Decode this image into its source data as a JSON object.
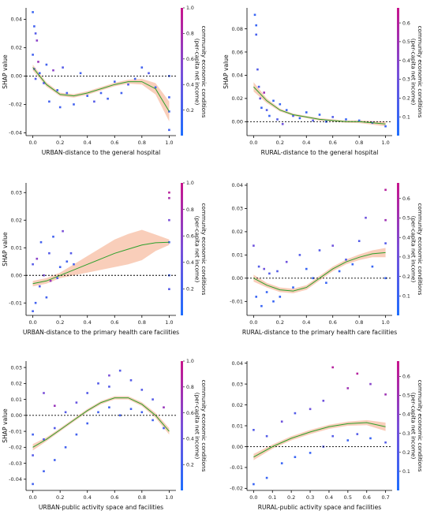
{
  "colorbar_label": "community economic conditions\n(per-capita net income)",
  "colors": {
    "low": "#1e6eff",
    "mid": "#7a4fd8",
    "high": "#c8148c",
    "fit": "#2ca02c",
    "band": "#f4a582",
    "zero": "#000000"
  },
  "chart_data": [
    {
      "type": "scatter",
      "title": "",
      "xlabel": "URBAN-distance to the general hospital",
      "ylabel": "SHAP value",
      "xlim": [
        -0.05,
        1.05
      ],
      "ylim": [
        -0.042,
        0.048
      ],
      "xticks": [
        "0.0",
        "0.2",
        "0.4",
        "0.6",
        "0.8",
        "1.0"
      ],
      "xtick_values": [
        0,
        0.2,
        0.4,
        0.6,
        0.8,
        1.0
      ],
      "yticks": [
        "-0.04",
        "-0.02",
        "0.00",
        "0.02",
        "0.04"
      ],
      "ytick_values": [
        -0.04,
        -0.02,
        0,
        0.02,
        0.04
      ],
      "fit_x": [
        0,
        0.1,
        0.2,
        0.3,
        0.4,
        0.5,
        0.6,
        0.7,
        0.8,
        0.9,
        1.0
      ],
      "fit_y": [
        0.006,
        -0.006,
        -0.013,
        -0.014,
        -0.012,
        -0.009,
        -0.006,
        -0.004,
        -0.004,
        -0.009,
        -0.025
      ],
      "band_half": [
        0.002,
        0.0015,
        0.0012,
        0.0012,
        0.0012,
        0.0012,
        0.0012,
        0.0014,
        0.002,
        0.004,
        0.007
      ],
      "points": {
        "x": [
          0,
          0.01,
          0.02,
          0.03,
          0,
          0.01,
          0.02,
          0.04,
          0.05,
          0.08,
          0.1,
          0.12,
          0.15,
          0.18,
          0.2,
          0.22,
          0.25,
          0.3,
          0.35,
          0.4,
          0.45,
          0.5,
          0.55,
          0.6,
          0.65,
          0.7,
          0.75,
          0.8,
          0.85,
          0.9,
          1.0,
          1.0,
          1.0,
          1.0
        ],
        "y": [
          0.045,
          0.035,
          0.03,
          0.025,
          0.015,
          0.005,
          -0.002,
          0.01,
          0.002,
          -0.005,
          0.008,
          -0.018,
          0.004,
          -0.01,
          -0.022,
          0.006,
          -0.012,
          -0.02,
          0.002,
          -0.014,
          -0.018,
          -0.012,
          -0.016,
          -0.004,
          -0.012,
          -0.006,
          -0.002,
          0.006,
          0.002,
          -0.008,
          -0.025,
          -0.038,
          -0.015,
          0.0
        ],
        "c": [
          0.15,
          0.2,
          0.3,
          0.6,
          0.2,
          0.5,
          0.3,
          0.7,
          0.2,
          0.3,
          0.2,
          0.2,
          0.6,
          0.2,
          0.2,
          0.3,
          0.2,
          0.2,
          0.2,
          0.2,
          0.3,
          0.2,
          0.2,
          0.2,
          0.2,
          0.3,
          0.2,
          0.2,
          0.3,
          0.2,
          0.2,
          0.2,
          0.2,
          0.2
        ]
      },
      "colorbar": {
        "range": [
          0.0,
          1.0
        ],
        "ticks": [
          "0.2",
          "0.4",
          "0.6",
          "0.8",
          "1.0"
        ],
        "tick_values": [
          0.2,
          0.4,
          0.6,
          0.8,
          1.0
        ]
      }
    },
    {
      "type": "scatter",
      "title": "",
      "xlabel": "RURAL-distance to the general hospital",
      "ylabel": "SHAP value",
      "xlim": [
        -0.05,
        1.05
      ],
      "ylim": [
        -0.012,
        0.098
      ],
      "xticks": [
        "0.0",
        "0.2",
        "0.4",
        "0.6",
        "0.8",
        "1.0"
      ],
      "xtick_values": [
        0,
        0.2,
        0.4,
        0.6,
        0.8,
        1.0
      ],
      "yticks": [
        "0.00",
        "0.02",
        "0.04",
        "0.06",
        "0.08"
      ],
      "ytick_values": [
        0,
        0.02,
        0.04,
        0.06,
        0.08
      ],
      "fit_x": [
        0,
        0.1,
        0.2,
        0.3,
        0.4,
        0.5,
        0.6,
        0.7,
        0.8,
        0.9,
        1.0
      ],
      "fit_y": [
        0.03,
        0.018,
        0.01,
        0.006,
        0.004,
        0.002,
        0.001,
        0.0,
        0.0,
        -0.001,
        -0.002
      ],
      "band_half": [
        0.004,
        0.002,
        0.0012,
        0.001,
        0.001,
        0.001,
        0.001,
        0.001,
        0.0012,
        0.0015,
        0.002
      ],
      "points": {
        "x": [
          0.01,
          0.02,
          0.02,
          0.03,
          0.04,
          0.05,
          0.06,
          0.08,
          0.1,
          0.12,
          0.15,
          0.18,
          0.2,
          0.22,
          0.25,
          0.3,
          0.35,
          0.4,
          0.45,
          0.5,
          0.55,
          0.6,
          0.7,
          0.8,
          0.9,
          1.0
        ],
        "y": [
          0.092,
          0.083,
          0.075,
          0.045,
          0.03,
          0.02,
          0.012,
          0.025,
          0.01,
          0.005,
          0.018,
          0.002,
          0.015,
          -0.002,
          0.01,
          0.005,
          0.003,
          0.008,
          0.001,
          0.006,
          0.0,
          0.004,
          0.002,
          0.001,
          -0.001,
          -0.004
        ],
        "c": [
          0.1,
          0.1,
          0.15,
          0.2,
          0.2,
          0.3,
          0.1,
          0.5,
          0.2,
          0.1,
          0.1,
          0.2,
          0.1,
          0.3,
          0.1,
          0.2,
          0.1,
          0.1,
          0.2,
          0.1,
          0.1,
          0.2,
          0.1,
          0.1,
          0.2,
          0.1
        ]
      },
      "colorbar": {
        "range": [
          0.0,
          0.68
        ],
        "ticks": [
          "0.1",
          "0.2",
          "0.3",
          "0.4",
          "0.5",
          "0.6"
        ],
        "tick_values": [
          0.1,
          0.2,
          0.3,
          0.4,
          0.5,
          0.6
        ]
      }
    },
    {
      "type": "scatter",
      "title": "",
      "xlabel": "URBAN-distance to the primary health care facilities",
      "ylabel": "SHAP value",
      "xlim": [
        -0.05,
        1.05
      ],
      "ylim": [
        -0.0145,
        0.0335
      ],
      "xticks": [
        "0.0",
        "0.2",
        "0.4",
        "0.6",
        "0.8",
        "1.0"
      ],
      "xtick_values": [
        0,
        0.2,
        0.4,
        0.6,
        0.8,
        1.0
      ],
      "yticks": [
        "-0.01",
        "0.00",
        "0.01",
        "0.02",
        "0.03"
      ],
      "ytick_values": [
        -0.01,
        0,
        0.01,
        0.02,
        0.03
      ],
      "fit_x": [
        0,
        0.1,
        0.2,
        0.3,
        0.4,
        0.5,
        0.6,
        0.7,
        0.8,
        0.9,
        1.0
      ],
      "fit_y": [
        -0.003,
        -0.002,
        0.0,
        0.002,
        0.004,
        0.006,
        0.008,
        0.0095,
        0.011,
        0.0118,
        0.012
      ],
      "band_half": [
        0.001,
        0.001,
        0.001,
        0.002,
        0.003,
        0.004,
        0.005,
        0.0055,
        0.0055,
        0.003,
        0.001
      ],
      "points": {
        "x": [
          0,
          0,
          0.02,
          0.03,
          0.05,
          0.06,
          0.08,
          0.1,
          0.12,
          0.13,
          0.15,
          0.18,
          0.2,
          0.22,
          0.25,
          0.28,
          0.3,
          1.0,
          1.0,
          1.0,
          1.0,
          1.0,
          1.0
        ],
        "y": [
          -0.013,
          0.004,
          -0.01,
          0.006,
          -0.004,
          0.012,
          0.0,
          -0.008,
          0.008,
          -0.002,
          0.014,
          -0.001,
          0.003,
          0.016,
          0.005,
          0.008,
          0.004,
          0.03,
          0.02,
          0.012,
          0.0,
          -0.005,
          0.028
        ],
        "c": [
          0.2,
          0.3,
          0.2,
          0.6,
          0.3,
          0.2,
          0.5,
          0.2,
          0.3,
          0.7,
          0.2,
          0.3,
          0.2,
          0.5,
          0.2,
          0.3,
          0.2,
          0.9,
          0.5,
          0.2,
          0.2,
          0.3,
          0.8
        ]
      },
      "colorbar": {
        "range": [
          0.0,
          1.0
        ],
        "ticks": [
          "0.2",
          "0.4",
          "0.6",
          "0.8",
          "1.0"
        ],
        "tick_values": [
          0.2,
          0.4,
          0.6,
          0.8,
          1.0
        ]
      }
    },
    {
      "type": "scatter",
      "title": "",
      "xlabel": "RURAL-distance to the primary health care facilities",
      "ylabel": "",
      "xlim": [
        -0.05,
        1.05
      ],
      "ylim": [
        -0.016,
        0.041
      ],
      "xticks": [
        "0.0",
        "0.2",
        "0.4",
        "0.6",
        "0.8",
        "1.0"
      ],
      "xtick_values": [
        0,
        0.2,
        0.4,
        0.6,
        0.8,
        1.0
      ],
      "yticks": [
        "-0.01",
        "0.00",
        "0.01",
        "0.02",
        "0.03",
        "0.04"
      ],
      "ytick_values": [
        -0.01,
        0,
        0.01,
        0.02,
        0.03,
        0.04
      ],
      "fit_x": [
        0,
        0.1,
        0.2,
        0.3,
        0.4,
        0.5,
        0.6,
        0.7,
        0.8,
        0.9,
        1.0
      ],
      "fit_y": [
        0.0,
        -0.003,
        -0.005,
        -0.0055,
        -0.004,
        0.0,
        0.004,
        0.007,
        0.009,
        0.0105,
        0.011
      ],
      "band_half": [
        0.0015,
        0.001,
        0.001,
        0.001,
        0.001,
        0.001,
        0.001,
        0.001,
        0.0012,
        0.0015,
        0.002
      ],
      "points": {
        "x": [
          0,
          0.02,
          0.04,
          0.06,
          0.08,
          0.1,
          0.12,
          0.15,
          0.18,
          0.2,
          0.25,
          0.3,
          0.35,
          0.4,
          0.45,
          0.5,
          0.55,
          0.6,
          0.65,
          0.7,
          0.75,
          0.8,
          0.85,
          0.9,
          1.0,
          1.0,
          1.0,
          1.0
        ],
        "y": [
          0.014,
          -0.008,
          0.005,
          -0.012,
          0.004,
          -0.006,
          0.002,
          -0.01,
          0.003,
          -0.008,
          0.007,
          -0.004,
          0.01,
          0.004,
          0.0,
          0.012,
          -0.002,
          0.014,
          0.003,
          0.008,
          0.006,
          0.016,
          0.026,
          0.005,
          0.038,
          0.025,
          0.015,
          0.0
        ],
        "c": [
          0.3,
          0.1,
          0.2,
          0.1,
          0.3,
          0.1,
          0.2,
          0.1,
          0.2,
          0.1,
          0.3,
          0.1,
          0.2,
          0.1,
          0.1,
          0.2,
          0.1,
          0.3,
          0.1,
          0.2,
          0.1,
          0.2,
          0.3,
          0.1,
          0.6,
          0.5,
          0.2,
          0.1
        ]
      },
      "colorbar": {
        "range": [
          0.0,
          0.68
        ],
        "ticks": [
          "0.1",
          "0.2",
          "0.3",
          "0.4",
          "0.5",
          "0.6"
        ],
        "tick_values": [
          0.1,
          0.2,
          0.3,
          0.4,
          0.5,
          0.6
        ]
      }
    },
    {
      "type": "scatter",
      "title": "",
      "xlabel": "URBAN-public activity space and facilities",
      "ylabel": "SHAP value",
      "xlim": [
        -0.05,
        1.05
      ],
      "ylim": [
        -0.047,
        0.034
      ],
      "xticks": [
        "0.0",
        "0.2",
        "0.4",
        "0.6",
        "0.8",
        "1.0"
      ],
      "xtick_values": [
        0,
        0.2,
        0.4,
        0.6,
        0.8,
        1.0
      ],
      "yticks": [
        "-0.04",
        "-0.03",
        "-0.02",
        "-0.01",
        "0.00",
        "0.01",
        "0.02",
        "0.03"
      ],
      "ytick_values": [
        -0.04,
        -0.03,
        -0.02,
        -0.01,
        0,
        0.01,
        0.02,
        0.03
      ],
      "fit_x": [
        0,
        0.1,
        0.2,
        0.3,
        0.4,
        0.5,
        0.6,
        0.7,
        0.8,
        0.9,
        1.0
      ],
      "fit_y": [
        -0.02,
        -0.015,
        -0.009,
        -0.003,
        0.003,
        0.008,
        0.011,
        0.011,
        0.007,
        0.0,
        -0.01
      ],
      "band_half": [
        0.002,
        0.0012,
        0.001,
        0.001,
        0.001,
        0.001,
        0.001,
        0.001,
        0.0012,
        0.0015,
        0.002
      ],
      "points": {
        "x": [
          0,
          0,
          0,
          0.08,
          0.08,
          0.08,
          0.16,
          0.16,
          0.16,
          0.24,
          0.24,
          0.32,
          0.32,
          0.4,
          0.4,
          0.48,
          0.48,
          0.56,
          0.56,
          0.56,
          0.64,
          0.64,
          0.72,
          0.72,
          0.8,
          0.8,
          0.88,
          0.88,
          0.96,
          0.96
        ],
        "y": [
          -0.043,
          -0.025,
          -0.012,
          -0.035,
          -0.015,
          0.014,
          -0.028,
          -0.008,
          0.006,
          -0.02,
          0.002,
          -0.012,
          0.008,
          -0.005,
          0.014,
          0.002,
          0.02,
          0.005,
          0.018,
          0.025,
          0.0,
          0.028,
          0.004,
          0.022,
          0.002,
          0.016,
          -0.003,
          0.01,
          -0.008,
          0.005
        ],
        "c": [
          0.2,
          0.3,
          0.2,
          0.2,
          0.3,
          0.5,
          0.2,
          0.3,
          0.7,
          0.2,
          0.3,
          0.2,
          0.4,
          0.2,
          0.3,
          0.2,
          0.3,
          0.2,
          0.3,
          0.5,
          0.2,
          0.3,
          0.2,
          0.3,
          0.2,
          0.3,
          0.2,
          0.3,
          0.2,
          0.7
        ]
      },
      "colorbar": {
        "range": [
          0.0,
          1.0
        ],
        "ticks": [
          "0.2",
          "0.4",
          "0.6",
          "0.8",
          "1.0"
        ],
        "tick_values": [
          0.2,
          0.4,
          0.6,
          0.8,
          1.0
        ]
      }
    },
    {
      "type": "scatter",
      "title": "",
      "xlabel": "RURAL-public activity space and facilities",
      "ylabel": "",
      "xlim": [
        -0.035,
        0.735
      ],
      "ylim": [
        -0.021,
        0.041
      ],
      "xticks": [
        "0.0",
        "0.1",
        "0.2",
        "0.3",
        "0.4",
        "0.5",
        "0.6",
        "0.7"
      ],
      "xtick_values": [
        0,
        0.1,
        0.2,
        0.3,
        0.4,
        0.5,
        0.6,
        0.7
      ],
      "yticks": [
        "-0.02",
        "-0.01",
        "0.00",
        "0.01",
        "0.02",
        "0.03",
        "0.04"
      ],
      "ytick_values": [
        -0.02,
        -0.01,
        0,
        0.01,
        0.02,
        0.03,
        0.04
      ],
      "fit_x": [
        0,
        0.1,
        0.2,
        0.3,
        0.4,
        0.5,
        0.6,
        0.7
      ],
      "fit_y": [
        -0.005,
        0.0,
        0.004,
        0.007,
        0.0095,
        0.011,
        0.0115,
        0.0095
      ],
      "band_half": [
        0.0015,
        0.001,
        0.001,
        0.001,
        0.001,
        0.001,
        0.0012,
        0.002
      ],
      "points": {
        "x": [
          0,
          0,
          0.07,
          0.07,
          0.15,
          0.15,
          0.22,
          0.22,
          0.3,
          0.3,
          0.37,
          0.37,
          0.42,
          0.42,
          0.5,
          0.5,
          0.55,
          0.55,
          0.62,
          0.62,
          0.7,
          0.7
        ],
        "y": [
          -0.018,
          0.008,
          -0.015,
          0.005,
          -0.008,
          0.012,
          -0.005,
          0.016,
          -0.003,
          0.018,
          0.0,
          0.022,
          0.005,
          0.038,
          0.003,
          0.028,
          0.006,
          0.035,
          0.004,
          0.03,
          0.002,
          0.025
        ],
        "c": [
          0.1,
          0.2,
          0.1,
          0.2,
          0.1,
          0.3,
          0.1,
          0.2,
          0.1,
          0.3,
          0.2,
          0.3,
          0.2,
          0.6,
          0.1,
          0.5,
          0.2,
          0.6,
          0.1,
          0.4,
          0.2,
          0.5
        ]
      },
      "colorbar": {
        "range": [
          0.0,
          0.68
        ],
        "ticks": [
          "0.1",
          "0.2",
          "0.3",
          "0.4",
          "0.5",
          "0.6"
        ],
        "tick_values": [
          0.1,
          0.2,
          0.3,
          0.4,
          0.5,
          0.6
        ]
      }
    }
  ]
}
